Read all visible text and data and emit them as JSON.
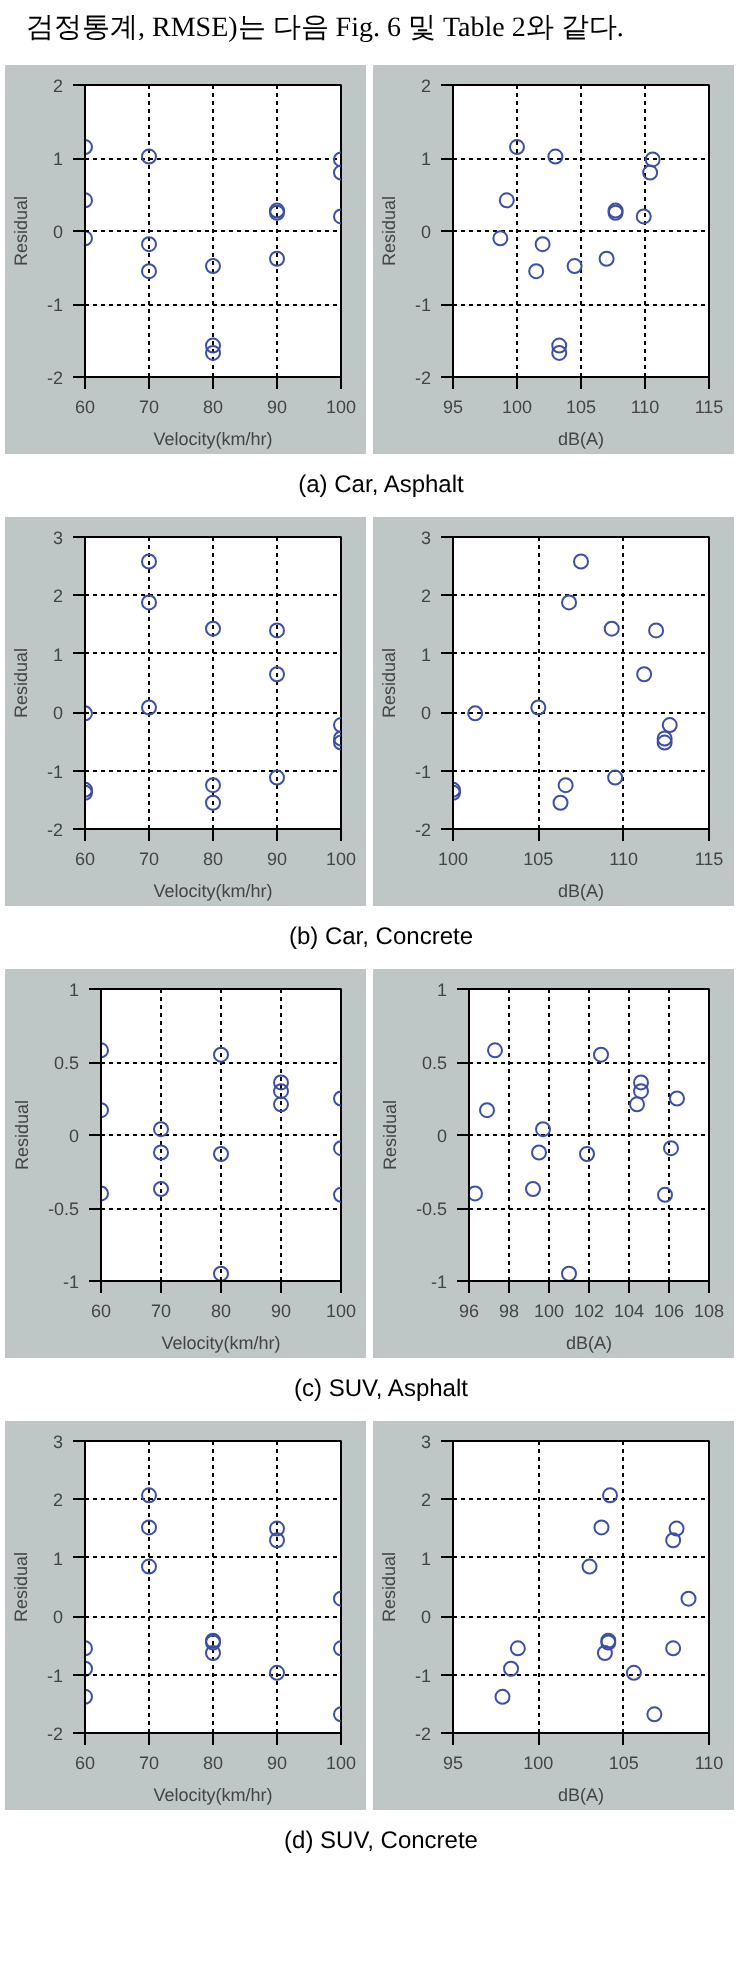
{
  "chart_data": [
    {
      "type": "scatter",
      "annotations": [
        "검정통계, RMSE)는 다음 Fig. 6 및 Table 2와 같다.",
        "(a) Car, Asphalt"
      ],
      "xlabel": "Velocity(km/hr)",
      "ylabel": "Residual",
      "xlim": [
        60,
        100
      ],
      "ylim": [
        -2,
        2
      ],
      "xticks": [
        60,
        70,
        80,
        90,
        100
      ],
      "yticks": [
        -2,
        -1,
        0,
        1,
        2
      ],
      "grid": true,
      "marker": "circle",
      "series": [
        {
          "color": "#3c4ea6",
          "x": [
            60,
            60,
            60,
            70,
            70,
            70,
            80,
            80,
            80,
            90,
            90,
            90,
            100,
            100,
            100
          ],
          "values": [
            1.15,
            0.42,
            -0.1,
            1.02,
            -0.18,
            -0.55,
            -0.48,
            -1.57,
            -1.67,
            0.28,
            0.25,
            -0.38,
            0.98,
            0.8,
            0.2
          ]
        }
      ]
    },
    {
      "type": "scatter",
      "xlabel": "dB(A)",
      "ylabel": "Residual",
      "xlim": [
        95,
        115
      ],
      "ylim": [
        -2,
        2
      ],
      "xticks": [
        95,
        100,
        105,
        110,
        115
      ],
      "yticks": [
        -2,
        -1,
        0,
        1,
        2
      ],
      "grid": true,
      "marker": "circle",
      "series": [
        {
          "color": "#3c4ea6",
          "x": [
            100,
            99.2,
            98.7,
            103,
            102,
            101.5,
            104.5,
            103.3,
            103.3,
            107.7,
            107.7,
            107,
            110.6,
            110.4,
            109.9
          ],
          "values": [
            1.15,
            0.42,
            -0.1,
            1.02,
            -0.18,
            -0.55,
            -0.48,
            -1.57,
            -1.67,
            0.28,
            0.25,
            -0.38,
            0.98,
            0.8,
            0.2
          ]
        }
      ]
    },
    {
      "type": "scatter",
      "annotations": [
        "(b) Car, Concrete"
      ],
      "xlabel": "Velocity(km/hr)",
      "ylabel": "Residual",
      "xlim": [
        60,
        100
      ],
      "ylim": [
        -2,
        3
      ],
      "xticks": [
        60,
        70,
        80,
        90,
        100
      ],
      "yticks": [
        -2,
        -1,
        0,
        1,
        2,
        3
      ],
      "grid": true,
      "marker": "circle",
      "series": [
        {
          "color": "#3c4ea6",
          "x": [
            60,
            60,
            60,
            70,
            70,
            70,
            80,
            80,
            80,
            90,
            90,
            90,
            100,
            100,
            100
          ],
          "values": [
            -0.02,
            -1.33,
            -1.38,
            2.58,
            1.88,
            0.08,
            1.43,
            -1.25,
            -1.55,
            1.4,
            0.65,
            -1.12,
            -0.22,
            -0.45,
            -0.52
          ]
        }
      ]
    },
    {
      "type": "scatter",
      "xlabel": "dB(A)",
      "ylabel": "Residual",
      "xlim": [
        100,
        115
      ],
      "ylim": [
        -2,
        3
      ],
      "xticks": [
        100,
        105,
        110,
        115
      ],
      "yticks": [
        -2,
        -1,
        0,
        1,
        2,
        3
      ],
      "grid": true,
      "marker": "circle",
      "series": [
        {
          "color": "#3c4ea6",
          "x": [
            101.3,
            100,
            100,
            107.5,
            106.8,
            105,
            109.3,
            106.6,
            106.3,
            111.9,
            111.2,
            109.5,
            112.7,
            112.4,
            112.4
          ],
          "values": [
            -0.02,
            -1.33,
            -1.38,
            2.58,
            1.88,
            0.08,
            1.43,
            -1.25,
            -1.55,
            1.4,
            0.65,
            -1.12,
            -0.22,
            -0.45,
            -0.52
          ]
        }
      ]
    },
    {
      "type": "scatter",
      "annotations": [
        "(c) SUV, Asphalt"
      ],
      "xlabel": "Velocity(km/hr)",
      "ylabel": "Residual",
      "xlim": [
        60,
        100
      ],
      "ylim": [
        -1,
        1
      ],
      "xticks": [
        60,
        70,
        80,
        90,
        100
      ],
      "yticks": [
        -1,
        -0.5,
        0,
        0.5,
        1
      ],
      "grid": true,
      "marker": "circle",
      "series": [
        {
          "color": "#3c4ea6",
          "x": [
            60,
            60,
            60,
            70,
            70,
            70,
            80,
            80,
            80,
            90,
            90,
            90,
            100,
            100,
            100
          ],
          "values": [
            0.58,
            0.17,
            -0.4,
            0.04,
            -0.12,
            -0.37,
            0.55,
            -0.13,
            -0.95,
            0.36,
            0.3,
            0.21,
            0.25,
            -0.09,
            -0.41
          ]
        }
      ]
    },
    {
      "type": "scatter",
      "xlabel": "dB(A)",
      "ylabel": "Residual",
      "xlim": [
        96,
        108
      ],
      "ylim": [
        -1,
        1
      ],
      "xticks": [
        96,
        98,
        100,
        102,
        104,
        106,
        108
      ],
      "yticks": [
        -1,
        -0.5,
        0,
        0.5,
        1
      ],
      "grid": true,
      "marker": "circle",
      "series": [
        {
          "color": "#3c4ea6",
          "x": [
            97.3,
            96.9,
            96.3,
            99.7,
            99.5,
            99.2,
            102.6,
            101.9,
            101,
            104.6,
            104.6,
            104.4,
            106.4,
            106.1,
            105.8
          ],
          "values": [
            0.58,
            0.17,
            -0.4,
            0.04,
            -0.12,
            -0.37,
            0.55,
            -0.13,
            -0.95,
            0.36,
            0.3,
            0.21,
            0.25,
            -0.09,
            -0.41
          ]
        }
      ]
    },
    {
      "type": "scatter",
      "annotations": [
        "(d) SUV, Concrete"
      ],
      "xlabel": "Velocity(km/hr)",
      "ylabel": "Residual",
      "xlim": [
        60,
        100
      ],
      "ylim": [
        -2,
        3
      ],
      "xticks": [
        60,
        70,
        80,
        90,
        100
      ],
      "yticks": [
        -2,
        -1,
        0,
        1,
        2,
        3
      ],
      "grid": true,
      "marker": "circle",
      "series": [
        {
          "color": "#3c4ea6",
          "x": [
            60,
            60,
            60,
            70,
            70,
            70,
            80,
            80,
            80,
            90,
            90,
            90,
            100,
            100,
            100
          ],
          "values": [
            -0.55,
            -0.9,
            -1.38,
            2.07,
            1.52,
            0.85,
            -0.42,
            -0.45,
            -0.63,
            1.5,
            1.3,
            -0.97,
            0.3,
            -0.55,
            -1.68
          ]
        }
      ]
    },
    {
      "type": "scatter",
      "xlabel": "dB(A)",
      "ylabel": "Residual",
      "xlim": [
        95,
        110
      ],
      "ylim": [
        -2,
        3
      ],
      "xticks": [
        95,
        100,
        105,
        110
      ],
      "yticks": [
        -2,
        -1,
        0,
        1,
        2,
        3
      ],
      "grid": true,
      "marker": "circle",
      "series": [
        {
          "color": "#3c4ea6",
          "x": [
            98.8,
            98.4,
            97.9,
            104.2,
            103.7,
            103,
            104.1,
            104.1,
            103.9,
            108.1,
            107.9,
            105.6,
            108.8,
            107.9,
            106.8
          ],
          "values": [
            -0.55,
            -0.9,
            -1.38,
            2.07,
            1.52,
            0.85,
            -0.42,
            -0.45,
            -0.63,
            1.5,
            1.3,
            -0.97,
            0.3,
            -0.55,
            -1.68
          ]
        }
      ]
    }
  ]
}
